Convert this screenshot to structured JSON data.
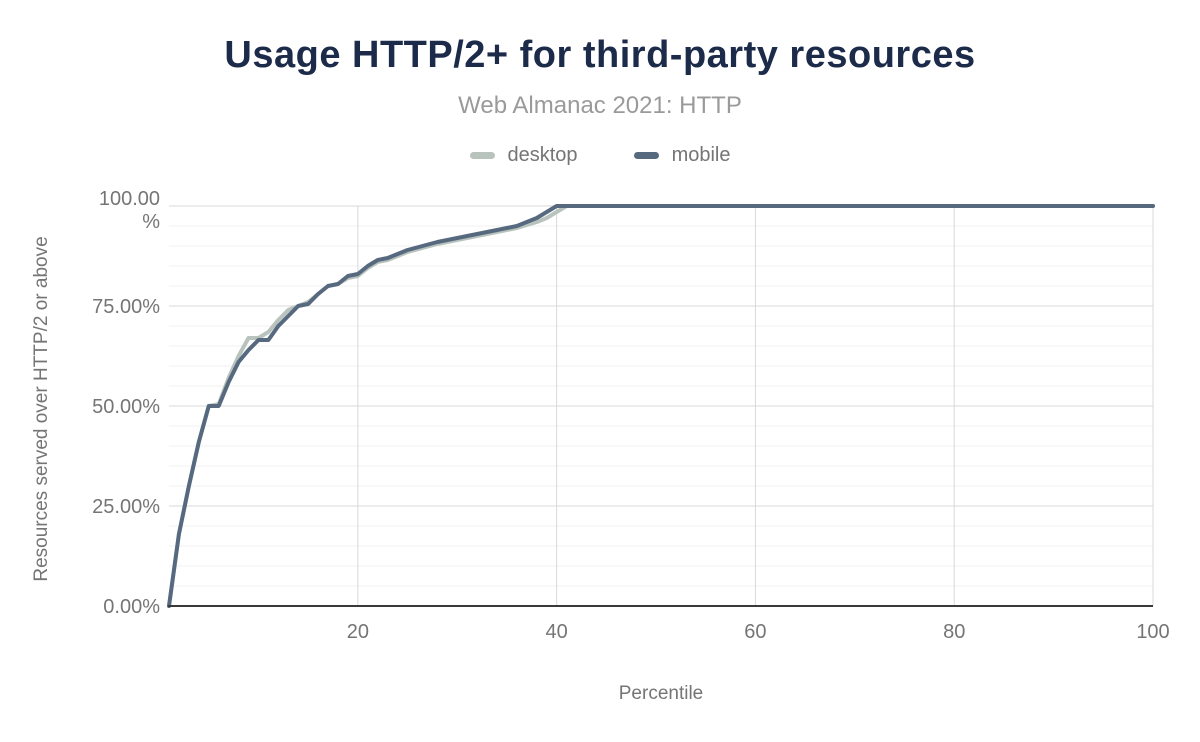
{
  "chart_data": {
    "type": "line",
    "title": "Usage HTTP/2+ for third-party resources",
    "subtitle": "Web Almanac 2021: HTTP",
    "xlabel": "Percentile",
    "ylabel": "Resources served over HTTP/2 or above",
    "xlim": [
      1,
      100
    ],
    "ylim": [
      0,
      100
    ],
    "grid": true,
    "legend_position": "top",
    "x_ticks": [
      {
        "value": 20,
        "label": "20"
      },
      {
        "value": 40,
        "label": "40"
      },
      {
        "value": 60,
        "label": "60"
      },
      {
        "value": 80,
        "label": "80"
      },
      {
        "value": 100,
        "label": "100"
      }
    ],
    "y_ticks": [
      {
        "value": 0,
        "lines": [
          "0.00%"
        ]
      },
      {
        "value": 25,
        "lines": [
          "25.00%"
        ]
      },
      {
        "value": 50,
        "lines": [
          "50.00%"
        ]
      },
      {
        "value": 75,
        "lines": [
          "75.00%"
        ]
      },
      {
        "value": 100,
        "lines": [
          "100.00",
          "%"
        ]
      }
    ],
    "minor_y_step": 5,
    "series": [
      {
        "name": "desktop",
        "color": "#b9c3bd",
        "points": [
          [
            1,
            0
          ],
          [
            2,
            18
          ],
          [
            3,
            30
          ],
          [
            4,
            41
          ],
          [
            5,
            50
          ],
          [
            6,
            50.5
          ],
          [
            7,
            57
          ],
          [
            8,
            62.5
          ],
          [
            9,
            67
          ],
          [
            10,
            67
          ],
          [
            11,
            68.5
          ],
          [
            12,
            71.5
          ],
          [
            13,
            74
          ],
          [
            14,
            75
          ],
          [
            15,
            76
          ],
          [
            16,
            78
          ],
          [
            17,
            80
          ],
          [
            18,
            80.5
          ],
          [
            19,
            82
          ],
          [
            20,
            82.5
          ],
          [
            21,
            84.5
          ],
          [
            22,
            86
          ],
          [
            23,
            86.5
          ],
          [
            25,
            88.5
          ],
          [
            28,
            90.5
          ],
          [
            31,
            92
          ],
          [
            34,
            93.5
          ],
          [
            36,
            94.5
          ],
          [
            38,
            96
          ],
          [
            39,
            97
          ],
          [
            40,
            98.5
          ],
          [
            41,
            100
          ],
          [
            100,
            100
          ]
        ]
      },
      {
        "name": "mobile",
        "color": "#56697f",
        "points": [
          [
            1,
            0
          ],
          [
            2,
            18
          ],
          [
            3,
            30
          ],
          [
            4,
            41
          ],
          [
            5,
            50
          ],
          [
            6,
            50
          ],
          [
            7,
            56
          ],
          [
            8,
            61
          ],
          [
            9,
            64
          ],
          [
            10,
            66.5
          ],
          [
            11,
            66.5
          ],
          [
            12,
            70
          ],
          [
            13,
            72.5
          ],
          [
            14,
            75
          ],
          [
            15,
            75.5
          ],
          [
            16,
            78
          ],
          [
            17,
            80
          ],
          [
            18,
            80.5
          ],
          [
            19,
            82.5
          ],
          [
            20,
            83
          ],
          [
            21,
            85
          ],
          [
            22,
            86.5
          ],
          [
            23,
            87
          ],
          [
            25,
            89
          ],
          [
            28,
            91
          ],
          [
            31,
            92.5
          ],
          [
            34,
            94
          ],
          [
            36,
            95
          ],
          [
            38,
            97
          ],
          [
            39,
            98.5
          ],
          [
            40,
            100
          ],
          [
            41,
            100
          ],
          [
            100,
            100
          ]
        ]
      }
    ]
  },
  "colors": {
    "title": "#1c2b4a",
    "subtitle": "#9a9a9a",
    "axis_text": "#757575",
    "major_grid": "#d9d9d9",
    "minor_grid": "#f2f2f2",
    "axis_line": "#3a3a3a"
  }
}
